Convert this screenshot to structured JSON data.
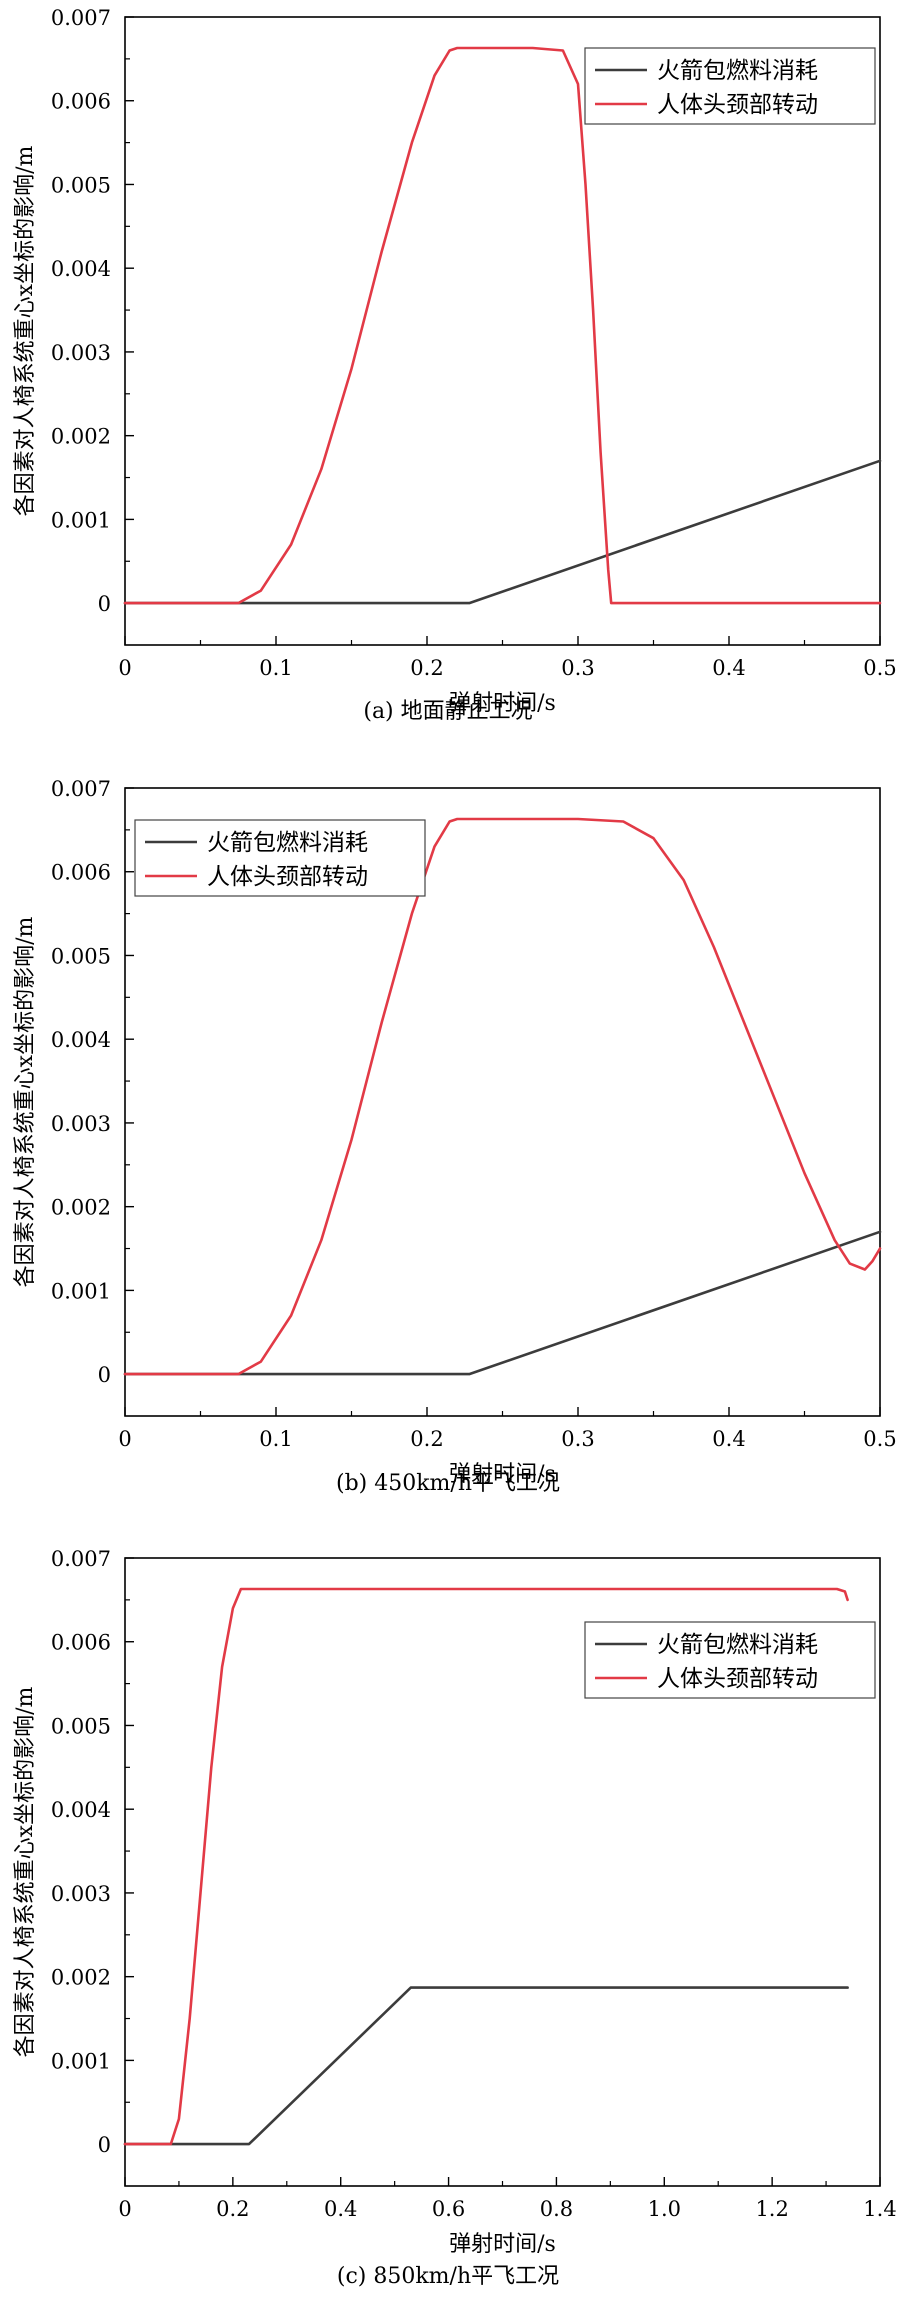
{
  "colors": {
    "fuel": "#3c3c3c",
    "head": "#e23a46",
    "axis": "#000000"
  },
  "chart_data": [
    {
      "type": "line",
      "caption": "(a) 地面静止工况",
      "xlabel": "弹射时间/s",
      "ylabel": "各因素对人椅系统重心x坐标的影响/m",
      "xlim": [
        0,
        0.5
      ],
      "ylim": [
        -0.0005,
        0.007
      ],
      "xticks": [
        "0",
        "0.1",
        "0.2",
        "0.3",
        "0.4",
        "0.5"
      ],
      "yticks": [
        "0",
        "0.001",
        "0.002",
        "0.003",
        "0.004",
        "0.005",
        "0.006",
        "0.007"
      ],
      "legend_position": "top-right",
      "series": [
        {
          "name": "火箭包燃料消耗",
          "color_key": "fuel",
          "points": [
            [
              0,
              0
            ],
            [
              0.228,
              0
            ],
            [
              0.5,
              0.0017
            ]
          ]
        },
        {
          "name": "人体头颈部转动",
          "color_key": "head",
          "points": [
            [
              0,
              0
            ],
            [
              0.075,
              0
            ],
            [
              0.09,
              0.00015
            ],
            [
              0.11,
              0.0007
            ],
            [
              0.13,
              0.0016
            ],
            [
              0.15,
              0.0028
            ],
            [
              0.17,
              0.0042
            ],
            [
              0.19,
              0.0055
            ],
            [
              0.205,
              0.0063
            ],
            [
              0.215,
              0.0066
            ],
            [
              0.22,
              0.00663
            ],
            [
              0.27,
              0.00663
            ],
            [
              0.29,
              0.0066
            ],
            [
              0.3,
              0.0062
            ],
            [
              0.305,
              0.005
            ],
            [
              0.31,
              0.0035
            ],
            [
              0.315,
              0.0018
            ],
            [
              0.32,
              0.0004
            ],
            [
              0.322,
              0
            ],
            [
              0.5,
              0
            ]
          ]
        }
      ]
    },
    {
      "type": "line",
      "caption": "(b) 450km/h平飞工况",
      "xlabel": "弹射时间/s",
      "ylabel": "各因素对人椅系统重心x坐标的影响/m",
      "xlim": [
        0,
        0.5
      ],
      "ylim": [
        -0.0005,
        0.007
      ],
      "xticks": [
        "0",
        "0.1",
        "0.2",
        "0.3",
        "0.4",
        "0.5"
      ],
      "yticks": [
        "0",
        "0.001",
        "0.002",
        "0.003",
        "0.004",
        "0.005",
        "0.006",
        "0.007"
      ],
      "legend_position": "top-left",
      "series": [
        {
          "name": "火箭包燃料消耗",
          "color_key": "fuel",
          "points": [
            [
              0,
              0
            ],
            [
              0.228,
              0
            ],
            [
              0.5,
              0.0017
            ]
          ]
        },
        {
          "name": "人体头颈部转动",
          "color_key": "head",
          "points": [
            [
              0,
              0
            ],
            [
              0.075,
              0
            ],
            [
              0.09,
              0.00015
            ],
            [
              0.11,
              0.0007
            ],
            [
              0.13,
              0.0016
            ],
            [
              0.15,
              0.0028
            ],
            [
              0.17,
              0.0042
            ],
            [
              0.19,
              0.0055
            ],
            [
              0.205,
              0.0063
            ],
            [
              0.215,
              0.0066
            ],
            [
              0.22,
              0.00663
            ],
            [
              0.3,
              0.00663
            ],
            [
              0.33,
              0.0066
            ],
            [
              0.35,
              0.0064
            ],
            [
              0.37,
              0.0059
            ],
            [
              0.39,
              0.0051
            ],
            [
              0.41,
              0.0042
            ],
            [
              0.43,
              0.0033
            ],
            [
              0.45,
              0.0024
            ],
            [
              0.47,
              0.0016
            ],
            [
              0.48,
              0.00132
            ],
            [
              0.49,
              0.00125
            ],
            [
              0.495,
              0.00135
            ],
            [
              0.5,
              0.0015
            ]
          ]
        }
      ]
    },
    {
      "type": "line",
      "caption": "(c) 850km/h平飞工况",
      "xlabel": "弹射时间/s",
      "ylabel": "各因素对人椅系统重心x坐标的影响/m",
      "xlim": [
        0,
        1.4
      ],
      "ylim": [
        -0.0005,
        0.007
      ],
      "xticks": [
        "0",
        "0.2",
        "0.4",
        "0.6",
        "0.8",
        "1.0",
        "1.2",
        "1.4"
      ],
      "yticks": [
        "0",
        "0.001",
        "0.002",
        "0.003",
        "0.004",
        "0.005",
        "0.006",
        "0.007"
      ],
      "legend_position": "top-right",
      "series": [
        {
          "name": "火箭包燃料消耗",
          "color_key": "fuel",
          "points": [
            [
              0,
              0
            ],
            [
              0.23,
              0
            ],
            [
              0.53,
              0.00187
            ],
            [
              1.34,
              0.00187
            ]
          ]
        },
        {
          "name": "人体头颈部转动",
          "color_key": "head",
          "points": [
            [
              0,
              0
            ],
            [
              0.085,
              0
            ],
            [
              0.1,
              0.0003
            ],
            [
              0.12,
              0.0015
            ],
            [
              0.14,
              0.003
            ],
            [
              0.16,
              0.0045
            ],
            [
              0.18,
              0.0057
            ],
            [
              0.2,
              0.0064
            ],
            [
              0.215,
              0.00663
            ],
            [
              0.23,
              0.00663
            ],
            [
              1.32,
              0.00663
            ],
            [
              1.335,
              0.0066
            ],
            [
              1.34,
              0.0065
            ]
          ]
        }
      ]
    }
  ]
}
